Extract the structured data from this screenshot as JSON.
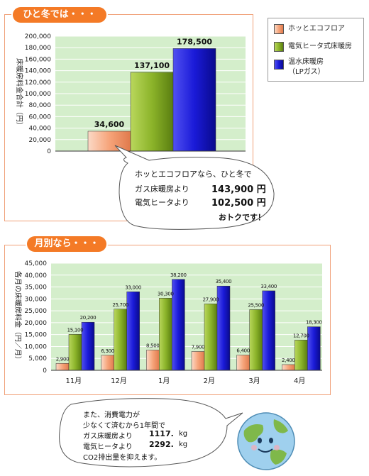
{
  "section1": {
    "title": "ひと冬では・・・"
  },
  "section2": {
    "title": "月別なら・・・"
  },
  "legend": {
    "items": [
      {
        "label": "ホッとエコフロア",
        "color": "#f8b28e"
      },
      {
        "label": "電気ヒータ式床暖房",
        "color": "#8db52c"
      },
      {
        "label_line1": "温水床暖房",
        "label_line2": "（LPガス）",
        "color": "#1c1cd6"
      }
    ]
  },
  "chart_data": [
    {
      "type": "bar",
      "ylabel": "床暖房料金合計（円）",
      "ylim": [
        0,
        200000
      ],
      "yticks": [
        "0",
        "20,000",
        "40,000",
        "60,000",
        "80,000",
        "100,000",
        "120,000",
        "140,000",
        "160,000",
        "180,000",
        "200,000"
      ],
      "series": [
        {
          "name": "ホッとエコフロア",
          "values": [
            34600
          ],
          "label": "34,600"
        },
        {
          "name": "電気ヒータ式床暖房",
          "values": [
            137100
          ],
          "label": "137,100"
        },
        {
          "name": "温水床暖房（LPガス）",
          "values": [
            178500
          ],
          "label": "178,500"
        }
      ]
    },
    {
      "type": "bar",
      "ylabel": "各月の床暖房料金（円／月）",
      "ylim": [
        0,
        45000
      ],
      "yticks": [
        "0",
        "5,000",
        "10,000",
        "15,000",
        "20,000",
        "25,000",
        "30,000",
        "35,000",
        "40,000",
        "45,000"
      ],
      "categories": [
        "11月",
        "12月",
        "1月",
        "2月",
        "3月",
        "4月"
      ],
      "series": [
        {
          "name": "ホッとエコフロア",
          "values": [
            2900,
            6300,
            8500,
            7900,
            6400,
            2400
          ],
          "labels": [
            "2,900",
            "6,300",
            "8,500",
            "7,900",
            "6,400",
            "2,400"
          ]
        },
        {
          "name": "電気ヒータ式床暖房",
          "values": [
            15100,
            25700,
            30300,
            27900,
            25500,
            12700
          ],
          "labels": [
            "15,100",
            "25,700",
            "30,300",
            "27,900",
            "25,500",
            "12,700"
          ]
        },
        {
          "name": "温水床暖房（LPガス）",
          "values": [
            20200,
            33000,
            38200,
            35400,
            33400,
            18300
          ],
          "labels": [
            "20,200",
            "33,000",
            "38,200",
            "35,400",
            "33,400",
            "18,300"
          ]
        }
      ]
    }
  ],
  "bubble1": {
    "line1": "ホッとエコフロアなら、ひと冬で",
    "row1_label": "ガス床暖房より",
    "row1_value": "143,900 円",
    "row2_label": "電気ヒータより",
    "row2_value": "102,500 円",
    "closing": "おトクです！"
  },
  "bubble2": {
    "line1": "また、消費電力が",
    "line2": "少なくて済むから1年間で",
    "row1_label": "ガス床暖房より",
    "row1_value": "1117.",
    "row1_unit": "kg",
    "row2_label": "電気ヒータより",
    "row2_value": "2292.",
    "row2_unit": "kg",
    "line5": "CO2排出量を抑えます。"
  }
}
